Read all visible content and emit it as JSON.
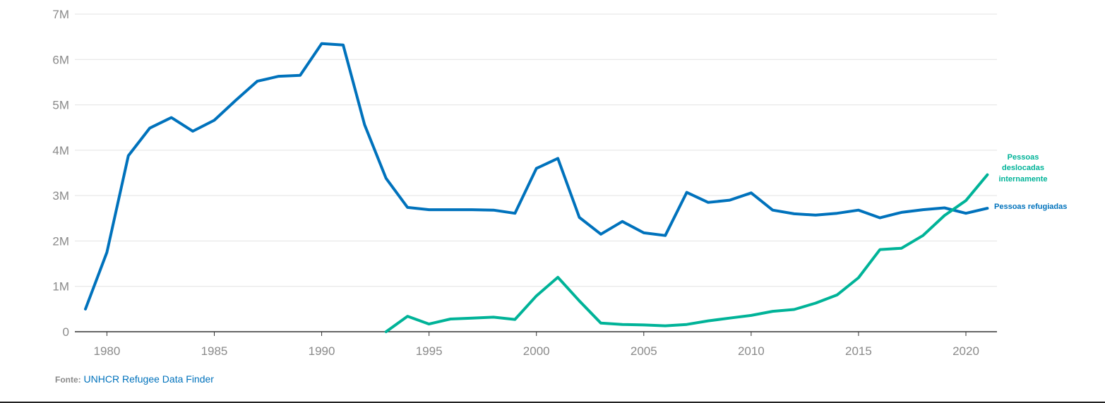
{
  "chart_data": {
    "type": "line",
    "title": "",
    "xlabel": "",
    "ylabel": "",
    "xlim": [
      1979,
      2021
    ],
    "ylim": [
      0,
      7000000
    ],
    "grid": true,
    "legend": "inline-right",
    "y_ticks": [
      {
        "value": 0,
        "label": "0"
      },
      {
        "value": 1000000,
        "label": "1M"
      },
      {
        "value": 2000000,
        "label": "2M"
      },
      {
        "value": 3000000,
        "label": "3M"
      },
      {
        "value": 4000000,
        "label": "4M"
      },
      {
        "value": 5000000,
        "label": "5M"
      },
      {
        "value": 6000000,
        "label": "6M"
      },
      {
        "value": 7000000,
        "label": "7M"
      }
    ],
    "x_ticks": [
      {
        "value": 1980,
        "label": "1980"
      },
      {
        "value": 1985,
        "label": "1985"
      },
      {
        "value": 1990,
        "label": "1990"
      },
      {
        "value": 1995,
        "label": "1995"
      },
      {
        "value": 2000,
        "label": "2000"
      },
      {
        "value": 2005,
        "label": "2005"
      },
      {
        "value": 2010,
        "label": "2010"
      },
      {
        "value": 2015,
        "label": "2015"
      },
      {
        "value": 2020,
        "label": "2020"
      }
    ],
    "series": [
      {
        "name": "Pessoas refugiadas",
        "color": "#0072bc",
        "x": [
          1979,
          1980,
          1981,
          1982,
          1983,
          1984,
          1985,
          1986,
          1987,
          1988,
          1989,
          1990,
          1991,
          1992,
          1993,
          1994,
          1995,
          1996,
          1997,
          1998,
          1999,
          2000,
          2001,
          2002,
          2003,
          2004,
          2005,
          2006,
          2007,
          2008,
          2009,
          2010,
          2011,
          2012,
          2013,
          2014,
          2015,
          2016,
          2017,
          2018,
          2019,
          2020,
          2021
        ],
        "values": [
          500000,
          1750000,
          3880000,
          4490000,
          4720000,
          4420000,
          4660000,
          5100000,
          5520000,
          5630000,
          5650000,
          6350000,
          6320000,
          4560000,
          3380000,
          2740000,
          2690000,
          2690000,
          2690000,
          2680000,
          2610000,
          3600000,
          3820000,
          2520000,
          2150000,
          2430000,
          2180000,
          2120000,
          3070000,
          2850000,
          2900000,
          3060000,
          2680000,
          2600000,
          2570000,
          2610000,
          2680000,
          2510000,
          2630000,
          2690000,
          2730000,
          2610000,
          2720000
        ]
      },
      {
        "name": "Pessoas deslocadas internamente",
        "color": "#00b398",
        "x": [
          1993,
          1994,
          1995,
          1996,
          1997,
          1998,
          1999,
          2000,
          2001,
          2002,
          2003,
          2004,
          2005,
          2006,
          2007,
          2008,
          2009,
          2010,
          2011,
          2012,
          2013,
          2014,
          2015,
          2016,
          2017,
          2018,
          2019,
          2020,
          2021
        ],
        "values": [
          0,
          340000,
          170000,
          280000,
          300000,
          320000,
          270000,
          790000,
          1200000,
          680000,
          190000,
          160000,
          150000,
          130000,
          160000,
          240000,
          300000,
          360000,
          450000,
          490000,
          630000,
          810000,
          1190000,
          1810000,
          1840000,
          2120000,
          2560000,
          2890000,
          3460000
        ]
      }
    ],
    "series_labels": {
      "refugees": "Pessoas refugiadas",
      "idp_line1": "Pessoas",
      "idp_line2": "deslocadas",
      "idp_line3": "internamente"
    }
  },
  "source": {
    "prefix": "Fonte:",
    "link_text": "UNHCR Refugee Data Finder"
  }
}
